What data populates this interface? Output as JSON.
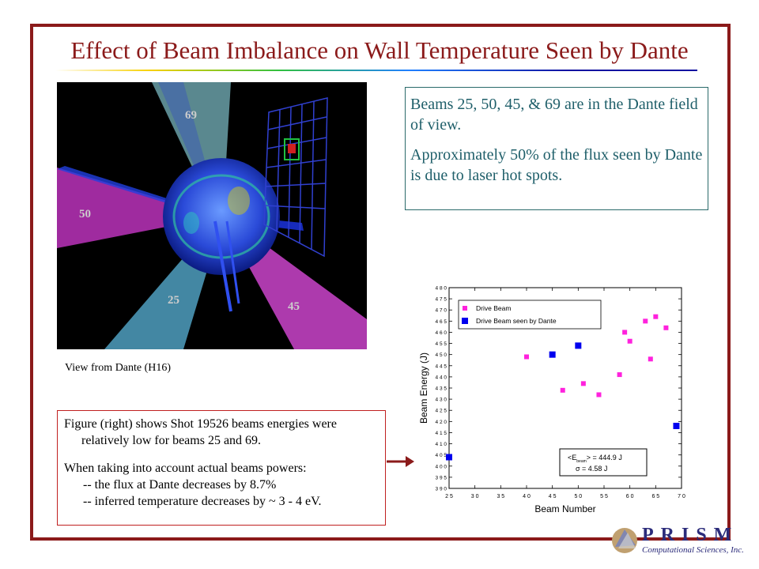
{
  "slide": {
    "title": "Effect of Beam Imbalance on Wall Temperature Seen by Dante",
    "frame_color": "#8b1a1a",
    "viz_caption": "View from Dante (H16)",
    "beam_labels": [
      "69",
      "50",
      "25",
      "45"
    ],
    "note": {
      "line1": "Beams 25, 50, 45, & 69 are in the Dante field of view.",
      "line2": "Approximately 50% of the flux seen by Dante is due to laser hot spots."
    },
    "figure_note": {
      "p1": "Figure (right) shows Shot 19526 beams energies were relatively low for beams 25 and 69.",
      "p2": "When taking into account actual beams powers:",
      "item1": "--  the flux at Dante decreases by 8.7%",
      "item2": "--  inferred temperature decreases by ~ 3 - 4 eV."
    },
    "logo": {
      "name": "PRISM",
      "subtitle": "Computational Sciences, Inc."
    }
  },
  "chart_data": {
    "type": "scatter",
    "xlabel": "Beam Number",
    "ylabel": "Beam Energy (J)",
    "xlim": [
      25,
      70
    ],
    "ylim": [
      390,
      480
    ],
    "xticks": [
      25,
      30,
      35,
      40,
      45,
      50,
      55,
      60,
      65,
      70
    ],
    "xtick_labels": [
      "2 5",
      "3 0",
      "3 5",
      "4 0",
      "4 5",
      "5 0",
      "5 5",
      "6 0",
      "6 5",
      "7 0"
    ],
    "yticks": [
      390,
      395,
      400,
      405,
      410,
      415,
      420,
      425,
      430,
      435,
      440,
      445,
      450,
      455,
      460,
      465,
      470,
      475,
      480
    ],
    "ytick_labels": [
      "3 9 0",
      "3 9 5",
      "4 0 0",
      "4 0 5",
      "4 1 0",
      "4 1 5",
      "4 2 0",
      "4 2 5",
      "4 3 0",
      "4 3 5",
      "4 4 0",
      "4 4 5",
      "4 5 0",
      "4 5 5",
      "4 6 0",
      "4 6 5",
      "4 7 0",
      "4 7 5",
      "4 8 0"
    ],
    "legend_position": "top-left",
    "series": [
      {
        "name": "Drive Beam",
        "color": "#ff22dd",
        "points": [
          [
            40,
            449
          ],
          [
            47,
            434
          ],
          [
            51,
            437
          ],
          [
            54,
            432
          ],
          [
            58,
            441
          ],
          [
            59,
            460
          ],
          [
            60,
            456
          ],
          [
            63,
            465
          ],
          [
            64,
            448
          ],
          [
            65,
            467
          ],
          [
            67,
            462
          ]
        ]
      },
      {
        "name": "Drive Beam seen by Dante",
        "color": "#0000ee",
        "points": [
          [
            25,
            404
          ],
          [
            45,
            450
          ],
          [
            50,
            454
          ],
          [
            69,
            418
          ]
        ]
      }
    ],
    "annotation": {
      "line1_lt": "<E",
      "line1_sub": "beam",
      "line1_rest": "> = 444.9 J",
      "line2": "σ = 4.58 J"
    }
  }
}
